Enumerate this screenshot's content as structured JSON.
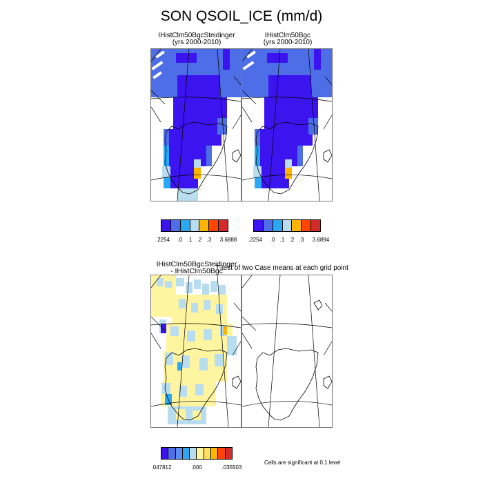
{
  "figure": {
    "title": "SON QSOIL_ICE (mm/d)",
    "panels": {
      "steidinger": {
        "line1": "IHistClm50BgcSteidinger",
        "line2": "(yrs 2000-2010)"
      },
      "bgc": {
        "line1": "IHistClm50Bgc",
        "line2": "(yrs 2000-2010)"
      },
      "difference": {
        "line1": "IHistClm50BgcSteidinger",
        "line2": "- IHistClm50Bgc"
      },
      "ttest": {
        "line1": "T-test of two Case means at each grid point"
      }
    },
    "colorbars": {
      "steidinger": {
        "colors": [
          "#3c14f0",
          "#4d6ee6",
          "#2aa9f2",
          "#b8ddf0",
          "#ffb400",
          "#ff4500",
          "#d42a2a"
        ],
        "labels": [
          ".2254",
          ".0",
          ".1",
          ".2",
          ".3",
          "3.6888"
        ]
      },
      "bgc": {
        "colors": [
          "#3c14f0",
          "#4d6ee6",
          "#2aa9f2",
          "#b8ddf0",
          "#ffb400",
          "#ff4500",
          "#d42a2a"
        ],
        "labels": [
          ".2254",
          ".0",
          ".1",
          ".2",
          ".3",
          "3.6894"
        ]
      },
      "difference": {
        "colors": [
          "#3c14f0",
          "#4d6ee6",
          "#5b8ef0",
          "#2aa9f2",
          "#b8ddf0",
          "#fff5a0",
          "#ffe060",
          "#ffb400",
          "#ff4500",
          "#d42a2a"
        ],
        "labels": [
          ".047812",
          ".000",
          ".035503"
        ]
      }
    },
    "significance_note": "Cells are significant at 0.1 level"
  }
}
